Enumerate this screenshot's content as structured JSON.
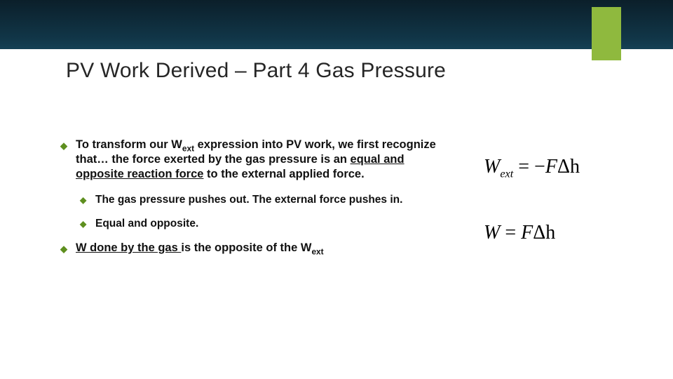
{
  "title": "PV Work Derived – Part 4 Gas Pressure",
  "colors": {
    "accent_green": "#8fb93e",
    "bullet_green": "#5e8f1f",
    "band_top": "#0b1f2a",
    "band_bottom": "#2a7a95",
    "text": "#111111",
    "background": "#ffffff"
  },
  "bullets": {
    "b1_pre": "To transform our W",
    "b1_sub1": "ext",
    "b1_mid": " expression into PV work, we first recognize that… the force exerted by the gas pressure is an ",
    "b1_ul": "equal and opposite reaction force",
    "b1_post": " to the external applied force.",
    "s1": "The gas pressure pushes out. The external force pushes in.",
    "s2": "Equal and opposite.",
    "b2_ul": "W done by the gas ",
    "b2_mid": "is the opposite of the W",
    "b2_sub": "ext"
  },
  "equations": {
    "eq1_lhs_W": "W",
    "eq1_lhs_sub": "ext",
    "eq1_eq": " = ",
    "eq1_rhs_neg": "−",
    "eq1_rhs_F": "F",
    "eq1_rhs_dh": "Δh",
    "eq2_lhs": "W",
    "eq2_eq": " = ",
    "eq2_rhs_F": "F",
    "eq2_rhs_dh": "Δh"
  }
}
